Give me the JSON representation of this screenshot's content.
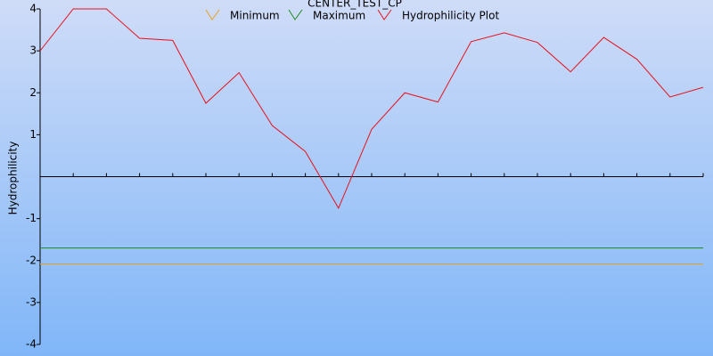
{
  "chart_data": {
    "type": "line",
    "title": "CENTER_TEST_CP",
    "y_label": "Hydrophilicity",
    "categories": [
      null,
      null,
      null,
      null,
      null,
      null,
      null,
      null,
      null,
      null,
      null,
      null,
      null,
      null,
      null,
      null,
      null,
      null,
      null,
      null,
      null
    ],
    "series": [
      {
        "name": "Minimum",
        "color": "#e8a020",
        "values": [
          -2.08,
          -2.08,
          -2.08,
          -2.08,
          -2.08,
          -2.08,
          -2.08,
          -2.08,
          -2.08,
          -2.08,
          -2.08,
          -2.08,
          -2.08,
          -2.08,
          -2.08,
          -2.08,
          -2.08,
          -2.08,
          -2.08,
          -2.08,
          -2.08
        ]
      },
      {
        "name": "Maximum",
        "color": "#1e8a1e",
        "values": [
          -1.7,
          -1.7,
          -1.7,
          -1.7,
          -1.7,
          -1.7,
          -1.7,
          -1.7,
          -1.7,
          -1.7,
          -1.7,
          -1.7,
          -1.7,
          -1.7,
          -1.7,
          -1.7,
          -1.7,
          -1.7,
          -1.7,
          -1.7,
          -1.7
        ]
      },
      {
        "name": "Hydrophilicity Plot",
        "color": "#e8101c",
        "values": [
          3.0,
          4.0,
          4.0,
          3.3,
          3.25,
          1.75,
          2.48,
          1.22,
          0.6,
          -0.75,
          1.13,
          2.0,
          1.78,
          3.22,
          3.43,
          3.2,
          2.5,
          3.32,
          2.8,
          1.9,
          2.13
        ]
      }
    ],
    "ylim": [
      -4,
      4
    ],
    "yticks": [
      4,
      3,
      2,
      1,
      -1,
      -2,
      -3,
      -4
    ]
  }
}
